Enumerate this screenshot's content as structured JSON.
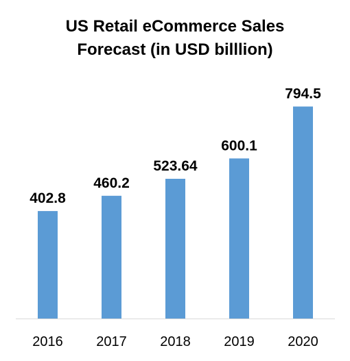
{
  "chart_data": {
    "type": "bar",
    "title_lines": [
      "US Retail eCommerce Sales",
      "Forecast (in USD billlion)"
    ],
    "categories": [
      "2016",
      "2017",
      "2018",
      "2019",
      "2020"
    ],
    "values": [
      402.8,
      460.2,
      523.64,
      600.1,
      794.5
    ],
    "value_labels": [
      "402.8",
      "460.2",
      "523.64",
      "600.1",
      "794.5"
    ],
    "xlabel": "",
    "ylabel": "",
    "ylim": [
      0,
      800
    ],
    "grid": false,
    "legend": "none",
    "bar_color": "#5B9BD5",
    "axis_color": "#D9D9D9"
  }
}
